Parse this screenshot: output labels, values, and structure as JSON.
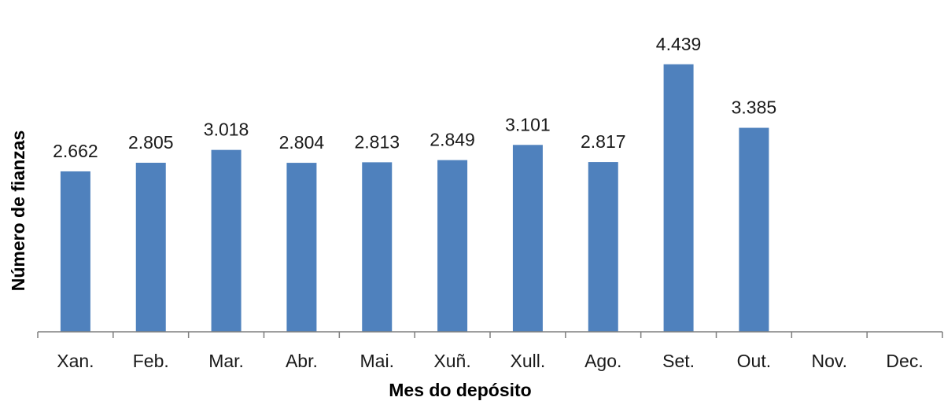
{
  "chart_data": {
    "type": "bar",
    "title": "",
    "xlabel": "Mes do depósito",
    "ylabel": "Número de fianzas",
    "categories": [
      "Xan.",
      "Feb.",
      "Mar.",
      "Abr.",
      "Mai.",
      "Xuñ.",
      "Xull.",
      "Ago.",
      "Set.",
      "Out.",
      "Nov.",
      "Dec."
    ],
    "values": [
      2662,
      2805,
      3018,
      2804,
      2813,
      2849,
      3101,
      2817,
      4439,
      3385,
      null,
      null
    ],
    "value_labels": [
      "2.662",
      "2.805",
      "3.018",
      "2.804",
      "2.813",
      "2.849",
      "3.101",
      "2.817",
      "4.439",
      "3.385",
      "",
      ""
    ],
    "ylim": [
      0,
      4600
    ],
    "grid": false,
    "legend": "none",
    "bar_color": "#4f81bd",
    "axis_color": "#7f7f7f"
  }
}
